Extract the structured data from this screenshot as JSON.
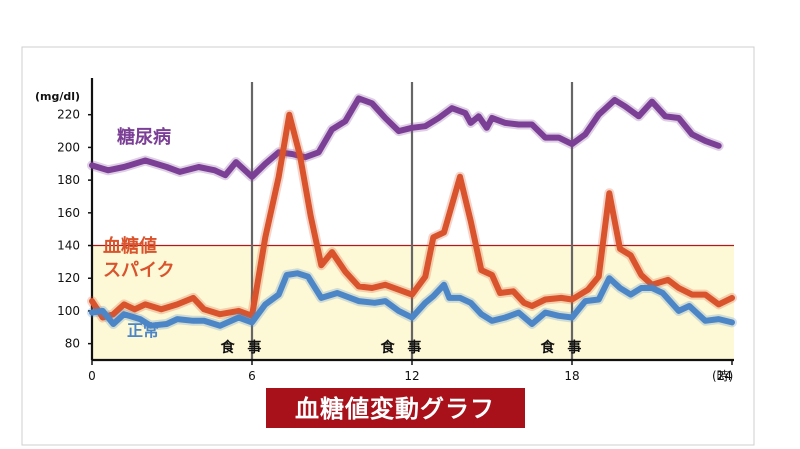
{
  "chart_data": {
    "type": "line",
    "title": "血糖値変動グラフ",
    "ylabel": "(mg/dl)",
    "xunit": "(時)",
    "xlim": [
      0,
      24
    ],
    "ylim": [
      70,
      240
    ],
    "yticks": [
      80,
      100,
      120,
      140,
      160,
      180,
      200,
      220
    ],
    "xticks": [
      0,
      6,
      12,
      18,
      24
    ],
    "grid": false,
    "threshold": {
      "y": 140,
      "color": "#b01a1a",
      "fill": "#fdf8d6"
    },
    "meals": [
      {
        "x": 6,
        "label": "食 事"
      },
      {
        "x": 12,
        "label": "食 事"
      },
      {
        "x": 18,
        "label": "食 事"
      }
    ],
    "series": [
      {
        "name": "糖尿病",
        "color": "#7b3f96",
        "points": [
          [
            0,
            189
          ],
          [
            0.6,
            186
          ],
          [
            1.2,
            188
          ],
          [
            2,
            192
          ],
          [
            2.8,
            188
          ],
          [
            3.3,
            185
          ],
          [
            4,
            188
          ],
          [
            4.6,
            186
          ],
          [
            5,
            183
          ],
          [
            5.4,
            191
          ],
          [
            6,
            182
          ],
          [
            6.5,
            190
          ],
          [
            7,
            197
          ],
          [
            7.5,
            196
          ],
          [
            8,
            194
          ],
          [
            8.5,
            197
          ],
          [
            9,
            211
          ],
          [
            9.5,
            216
          ],
          [
            10,
            230
          ],
          [
            10.5,
            227
          ],
          [
            11,
            218
          ],
          [
            11.5,
            210
          ],
          [
            12,
            212
          ],
          [
            12.5,
            213
          ],
          [
            13,
            218
          ],
          [
            13.5,
            224
          ],
          [
            14,
            221
          ],
          [
            14.2,
            215
          ],
          [
            14.5,
            219
          ],
          [
            14.8,
            212
          ],
          [
            15,
            218
          ],
          [
            15.5,
            215
          ],
          [
            16,
            214
          ],
          [
            16.5,
            214
          ],
          [
            17,
            206
          ],
          [
            17.5,
            206
          ],
          [
            18,
            202
          ],
          [
            18.5,
            208
          ],
          [
            19,
            220
          ],
          [
            19.6,
            229
          ],
          [
            20,
            225
          ],
          [
            20.5,
            219
          ],
          [
            21,
            228
          ],
          [
            21.5,
            219
          ],
          [
            22,
            218
          ],
          [
            22.5,
            208
          ],
          [
            23,
            204
          ],
          [
            23.5,
            201
          ]
        ]
      },
      {
        "name": "血糖値スパイク",
        "color": "#d9532c",
        "points": [
          [
            0,
            106
          ],
          [
            0.4,
            96
          ],
          [
            0.8,
            98
          ],
          [
            1.2,
            104
          ],
          [
            1.6,
            101
          ],
          [
            2,
            104
          ],
          [
            2.6,
            101
          ],
          [
            3.2,
            104
          ],
          [
            3.8,
            108
          ],
          [
            4.2,
            101
          ],
          [
            4.8,
            98
          ],
          [
            5.5,
            100
          ],
          [
            6,
            97
          ],
          [
            6.5,
            145
          ],
          [
            7,
            182
          ],
          [
            7.4,
            220
          ],
          [
            7.8,
            195
          ],
          [
            8.2,
            158
          ],
          [
            8.6,
            128
          ],
          [
            9,
            136
          ],
          [
            9.5,
            124
          ],
          [
            10,
            115
          ],
          [
            10.5,
            114
          ],
          [
            11,
            116
          ],
          [
            11.5,
            113
          ],
          [
            12,
            110
          ],
          [
            12.5,
            121
          ],
          [
            12.8,
            145
          ],
          [
            13.2,
            148
          ],
          [
            13.8,
            182
          ],
          [
            14.2,
            155
          ],
          [
            14.6,
            125
          ],
          [
            15,
            122
          ],
          [
            15.3,
            111
          ],
          [
            15.8,
            112
          ],
          [
            16.2,
            105
          ],
          [
            16.5,
            103
          ],
          [
            17,
            107
          ],
          [
            17.6,
            108
          ],
          [
            18,
            107
          ],
          [
            18.6,
            113
          ],
          [
            19,
            121
          ],
          [
            19.4,
            172
          ],
          [
            19.8,
            138
          ],
          [
            20.2,
            134
          ],
          [
            20.6,
            122
          ],
          [
            21,
            116
          ],
          [
            21.6,
            119
          ],
          [
            22,
            114
          ],
          [
            22.5,
            110
          ],
          [
            23,
            110
          ],
          [
            23.5,
            104
          ],
          [
            24,
            108
          ]
        ]
      },
      {
        "name": "正常",
        "color": "#4d86c7",
        "points": [
          [
            0,
            99
          ],
          [
            0.4,
            100
          ],
          [
            0.8,
            92
          ],
          [
            1.2,
            98
          ],
          [
            1.8,
            95
          ],
          [
            2.2,
            91
          ],
          [
            2.8,
            92
          ],
          [
            3.2,
            95
          ],
          [
            3.8,
            94
          ],
          [
            4.2,
            94
          ],
          [
            4.8,
            91
          ],
          [
            5.5,
            96
          ],
          [
            6,
            93
          ],
          [
            6.5,
            104
          ],
          [
            7,
            110
          ],
          [
            7.3,
            122
          ],
          [
            7.7,
            123
          ],
          [
            8.1,
            121
          ],
          [
            8.6,
            108
          ],
          [
            9.2,
            111
          ],
          [
            10,
            106
          ],
          [
            10.6,
            105
          ],
          [
            11,
            106
          ],
          [
            11.5,
            100
          ],
          [
            12,
            96
          ],
          [
            12.5,
            105
          ],
          [
            12.8,
            109
          ],
          [
            13.2,
            116
          ],
          [
            13.4,
            108
          ],
          [
            13.8,
            108
          ],
          [
            14.2,
            105
          ],
          [
            14.6,
            98
          ],
          [
            15,
            94
          ],
          [
            15.5,
            96
          ],
          [
            16,
            99
          ],
          [
            16.5,
            92
          ],
          [
            17,
            99
          ],
          [
            17.5,
            97
          ],
          [
            18,
            96
          ],
          [
            18.5,
            106
          ],
          [
            19,
            107
          ],
          [
            19.4,
            120
          ],
          [
            19.8,
            114
          ],
          [
            20.2,
            110
          ],
          [
            20.6,
            114
          ],
          [
            21,
            114
          ],
          [
            21.4,
            111
          ],
          [
            22,
            100
          ],
          [
            22.4,
            103
          ],
          [
            23,
            94
          ],
          [
            23.5,
            95
          ],
          [
            24,
            93
          ]
        ]
      }
    ],
    "series_labels": [
      {
        "text": "糖尿病",
        "color": "#7b3f96"
      },
      {
        "text": "血糖値",
        "color": "#d9532c"
      },
      {
        "text": "スパイク",
        "color": "#d9532c"
      },
      {
        "text": "正常",
        "color": "#4d86c7"
      }
    ]
  }
}
